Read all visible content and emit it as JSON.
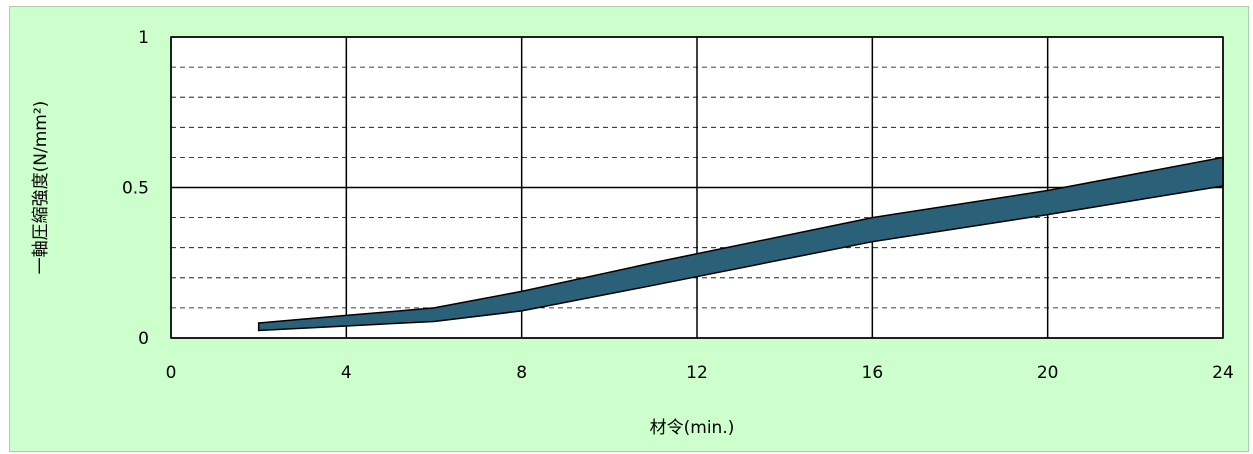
{
  "chart_data": {
    "type": "area",
    "title": "",
    "xlabel": "材令(min.)",
    "ylabel": "一軸圧縮強度(N/mm²)",
    "xlim": [
      0,
      24
    ],
    "ylim": [
      0,
      1
    ],
    "x_ticks": [
      "0",
      "4",
      "8",
      "12",
      "16",
      "20",
      "24"
    ],
    "x_tick_values": [
      0,
      4,
      8,
      12,
      16,
      20,
      24
    ],
    "y_ticks": [
      "0",
      "0.5",
      "1"
    ],
    "y_tick_values": [
      0,
      0.5,
      1
    ],
    "major_grid": true,
    "minor_y_grid_step": 0.1,
    "minor_y_grid_style": "dashed",
    "band": {
      "x": [
        2,
        4,
        6,
        8,
        11,
        16,
        20,
        24
      ],
      "upper": [
        0.05,
        0.075,
        0.1,
        0.155,
        0.25,
        0.4,
        0.49,
        0.6
      ],
      "lower": [
        0.025,
        0.04,
        0.055,
        0.09,
        0.175,
        0.32,
        0.41,
        0.505
      ]
    },
    "colors": {
      "background": "#ccffcc",
      "plot_area": "#ffffff",
      "band_fill": "#2b6178",
      "band_stroke": "#000000",
      "grid": "#000000"
    }
  }
}
